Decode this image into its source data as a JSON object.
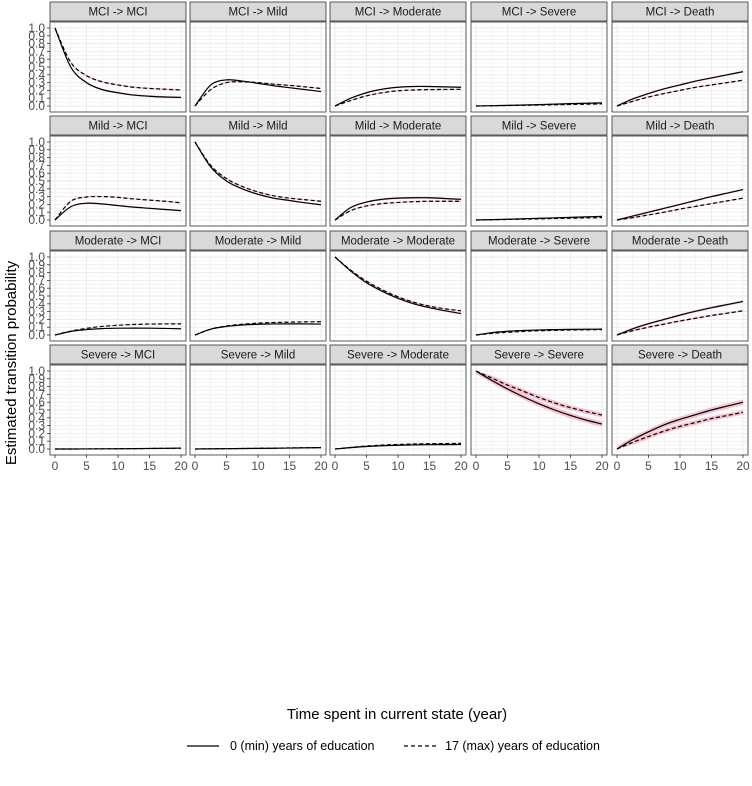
{
  "chart_data": {
    "type": "line",
    "layout": "facet grid, 4 rows (from state) x 5 columns (to state), shared axes",
    "xlabel": "Time spent in current state (year)",
    "ylabel": "Estimated transition probability",
    "xlim": [
      0,
      20
    ],
    "ylim": [
      0,
      1
    ],
    "x_ticks": [
      "0",
      "5",
      "10",
      "15",
      "20"
    ],
    "y_ticks": [
      "0.0",
      "0.1",
      "0.2",
      "0.3",
      "0.4",
      "0.5",
      "0.6",
      "0.7",
      "0.8",
      "0.9",
      "1.0"
    ],
    "grid": true,
    "legend_position": "bottom",
    "legend": [
      {
        "label": "0 (min) years of education",
        "linestyle": "solid"
      },
      {
        "label": "17 (max) years of education",
        "linestyle": "dashed"
      }
    ],
    "colors": {
      "line": "#000000",
      "ci_band": "#f4b8c4",
      "strip_bg": "#d9d9d9",
      "panel_border": "#333333",
      "grid": "#ebebeb"
    },
    "x": [
      0,
      2.5,
      5,
      7.5,
      10,
      12.5,
      15,
      17.5,
      20
    ],
    "panels": [
      {
        "title": "MCI -> MCI",
        "series": [
          {
            "name": "0 (min) years of education",
            "values": [
              1.0,
              0.5,
              0.3,
              0.21,
              0.17,
              0.14,
              0.125,
              0.115,
              0.11
            ],
            "band": 0.012
          },
          {
            "name": "17 (max) years of education",
            "values": [
              1.0,
              0.56,
              0.39,
              0.31,
              0.27,
              0.24,
              0.225,
              0.215,
              0.205
            ],
            "band": 0.01
          }
        ]
      },
      {
        "title": "MCI -> Mild",
        "series": [
          {
            "name": "0 (min) years of education",
            "values": [
              0.0,
              0.27,
              0.335,
              0.32,
              0.29,
              0.26,
              0.235,
              0.21,
              0.185
            ],
            "band": 0.008
          },
          {
            "name": "17 (max) years of education",
            "values": [
              0.0,
              0.21,
              0.3,
              0.31,
              0.3,
              0.28,
              0.265,
              0.245,
              0.225
            ],
            "band": 0.008
          }
        ]
      },
      {
        "title": "MCI -> Moderate",
        "series": [
          {
            "name": "0 (min) years of education",
            "values": [
              0.0,
              0.1,
              0.17,
              0.215,
              0.24,
              0.25,
              0.25,
              0.245,
              0.24
            ],
            "band": 0.008
          },
          {
            "name": "17 (max) years of education",
            "values": [
              0.0,
              0.07,
              0.13,
              0.17,
              0.195,
              0.205,
              0.21,
              0.212,
              0.214
            ],
            "band": 0.008
          }
        ]
      },
      {
        "title": "MCI -> Severe",
        "series": [
          {
            "name": "0 (min) years of education",
            "values": [
              0.0,
              0.004,
              0.008,
              0.013,
              0.018,
              0.024,
              0.03,
              0.035,
              0.04
            ],
            "band": 0.004
          },
          {
            "name": "17 (max) years of education",
            "values": [
              0.0,
              0.003,
              0.006,
              0.009,
              0.012,
              0.016,
              0.02,
              0.023,
              0.027
            ],
            "band": 0.004
          }
        ]
      },
      {
        "title": "MCI -> Death",
        "series": [
          {
            "name": "0 (min) years of education",
            "values": [
              0.0,
              0.09,
              0.16,
              0.22,
              0.27,
              0.32,
              0.36,
              0.4,
              0.44
            ],
            "band": 0.012
          },
          {
            "name": "17 (max) years of education",
            "values": [
              0.0,
              0.06,
              0.115,
              0.16,
              0.2,
              0.24,
              0.27,
              0.3,
              0.33
            ],
            "band": 0.01
          }
        ]
      },
      {
        "title": "Mild -> MCI",
        "series": [
          {
            "name": "0 (min) years of education",
            "values": [
              0.0,
              0.17,
              0.215,
              0.205,
              0.185,
              0.165,
              0.15,
              0.135,
              0.12
            ],
            "band": 0.01
          },
          {
            "name": "17 (max) years of education",
            "values": [
              0.0,
              0.24,
              0.295,
              0.3,
              0.29,
              0.27,
              0.255,
              0.24,
              0.22
            ],
            "band": 0.008
          }
        ]
      },
      {
        "title": "Mild -> Mild",
        "series": [
          {
            "name": "0 (min) years of education",
            "values": [
              1.0,
              0.68,
              0.5,
              0.4,
              0.33,
              0.28,
              0.25,
              0.22,
              0.195
            ],
            "band": 0.01
          },
          {
            "name": "17 (max) years of education",
            "values": [
              1.0,
              0.7,
              0.53,
              0.43,
              0.36,
              0.31,
              0.28,
              0.26,
              0.24
            ],
            "band": 0.008
          }
        ]
      },
      {
        "title": "Mild -> Moderate",
        "series": [
          {
            "name": "0 (min) years of education",
            "values": [
              0.0,
              0.16,
              0.23,
              0.265,
              0.28,
              0.285,
              0.285,
              0.275,
              0.265
            ],
            "band": 0.012
          },
          {
            "name": "17 (max) years of education",
            "values": [
              0.0,
              0.12,
              0.18,
              0.21,
              0.225,
              0.235,
              0.24,
              0.24,
              0.24
            ],
            "band": 0.008
          }
        ]
      },
      {
        "title": "Mild -> Severe",
        "series": [
          {
            "name": "0 (min) years of education",
            "values": [
              0.0,
              0.005,
              0.01,
              0.016,
              0.022,
              0.028,
              0.034,
              0.04,
              0.046
            ],
            "band": 0.004
          },
          {
            "name": "17 (max) years of education",
            "values": [
              0.0,
              0.003,
              0.007,
              0.011,
              0.015,
              0.019,
              0.023,
              0.027,
              0.03
            ],
            "band": 0.004
          }
        ]
      },
      {
        "title": "Mild -> Death",
        "series": [
          {
            "name": "0 (min) years of education",
            "values": [
              0.0,
              0.05,
              0.1,
              0.15,
              0.2,
              0.25,
              0.3,
              0.345,
              0.39
            ],
            "band": 0.012
          },
          {
            "name": "17 (max) years of education",
            "values": [
              0.0,
              0.03,
              0.065,
              0.1,
              0.14,
              0.175,
              0.21,
              0.245,
              0.28
            ],
            "band": 0.008
          }
        ]
      },
      {
        "title": "Moderate -> MCI",
        "series": [
          {
            "name": "0 (min) years of education",
            "values": [
              0.0,
              0.045,
              0.07,
              0.082,
              0.087,
              0.088,
              0.087,
              0.084,
              0.08
            ],
            "band": 0.006
          },
          {
            "name": "17 (max) years of education",
            "values": [
              0.0,
              0.05,
              0.085,
              0.11,
              0.125,
              0.135,
              0.14,
              0.142,
              0.143
            ],
            "band": 0.006
          }
        ]
      },
      {
        "title": "Moderate -> Mild",
        "series": [
          {
            "name": "0 (min) years of education",
            "values": [
              0.0,
              0.075,
              0.11,
              0.128,
              0.138,
              0.142,
              0.143,
              0.142,
              0.14
            ],
            "band": 0.006
          },
          {
            "name": "17 (max) years of education",
            "values": [
              0.0,
              0.075,
              0.115,
              0.138,
              0.152,
              0.16,
              0.165,
              0.168,
              0.17
            ],
            "band": 0.006
          }
        ]
      },
      {
        "title": "Moderate -> Moderate",
        "series": [
          {
            "name": "0 (min) years of education",
            "values": [
              1.0,
              0.82,
              0.67,
              0.56,
              0.47,
              0.4,
              0.35,
              0.31,
              0.275
            ],
            "band": 0.01
          },
          {
            "name": "17 (max) years of education",
            "values": [
              1.0,
              0.83,
              0.69,
              0.58,
              0.49,
              0.42,
              0.37,
              0.335,
              0.31
            ],
            "band": 0.01
          }
        ]
      },
      {
        "title": "Moderate -> Severe",
        "series": [
          {
            "name": "0 (min) years of education",
            "values": [
              0.0,
              0.03,
              0.048,
              0.058,
              0.065,
              0.069,
              0.072,
              0.074,
              0.075
            ],
            "band": 0.006
          },
          {
            "name": "17 (max) years of education",
            "values": [
              0.0,
              0.02,
              0.035,
              0.046,
              0.054,
              0.06,
              0.064,
              0.067,
              0.069
            ],
            "band": 0.005
          }
        ]
      },
      {
        "title": "Moderate -> Death",
        "series": [
          {
            "name": "0 (min) years of education",
            "values": [
              0.0,
              0.08,
              0.145,
              0.2,
              0.255,
              0.305,
              0.35,
              0.39,
              0.43
            ],
            "band": 0.015
          },
          {
            "name": "17 (max) years of education",
            "values": [
              0.0,
              0.055,
              0.1,
              0.14,
              0.18,
              0.215,
              0.25,
              0.28,
              0.31
            ],
            "band": 0.012
          }
        ]
      },
      {
        "title": "Severe -> MCI",
        "series": [
          {
            "name": "0 (min) years of education",
            "values": [
              0.0,
              0.0,
              0.001,
              0.002,
              0.003,
              0.005,
              0.007,
              0.009,
              0.012
            ],
            "band": 0.004
          },
          {
            "name": "17 (max) years of education",
            "values": [
              0.0,
              0.0,
              0.001,
              0.002,
              0.003,
              0.004,
              0.006,
              0.008,
              0.01
            ],
            "band": 0.004
          }
        ]
      },
      {
        "title": "Severe -> Mild",
        "series": [
          {
            "name": "0 (min) years of education",
            "values": [
              0.0,
              0.002,
              0.004,
              0.006,
              0.008,
              0.01,
              0.012,
              0.015,
              0.018
            ],
            "band": 0.004
          },
          {
            "name": "17 (max) years of education",
            "values": [
              0.0,
              0.002,
              0.004,
              0.006,
              0.009,
              0.011,
              0.014,
              0.016,
              0.019
            ],
            "band": 0.004
          }
        ]
      },
      {
        "title": "Severe -> Moderate",
        "series": [
          {
            "name": "0 (min) years of education",
            "values": [
              0.0,
              0.018,
              0.032,
              0.042,
              0.048,
              0.052,
              0.055,
              0.056,
              0.057
            ],
            "band": 0.008
          },
          {
            "name": "17 (max) years of education",
            "values": [
              0.0,
              0.02,
              0.038,
              0.05,
              0.058,
              0.064,
              0.068,
              0.07,
              0.072
            ],
            "band": 0.008
          }
        ]
      },
      {
        "title": "Severe -> Severe",
        "series": [
          {
            "name": "0 (min) years of education",
            "values": [
              1.0,
              0.88,
              0.77,
              0.67,
              0.58,
              0.5,
              0.43,
              0.37,
              0.32
            ],
            "band": 0.035
          },
          {
            "name": "17 (max) years of education",
            "values": [
              1.0,
              0.91,
              0.82,
              0.74,
              0.66,
              0.59,
              0.53,
              0.48,
              0.435
            ],
            "band": 0.03
          }
        ]
      },
      {
        "title": "Severe -> Death",
        "series": [
          {
            "name": "0 (min) years of education",
            "values": [
              0.0,
              0.12,
              0.22,
              0.31,
              0.38,
              0.44,
              0.5,
              0.55,
              0.6
            ],
            "band": 0.035
          },
          {
            "name": "17 (max) years of education",
            "values": [
              0.0,
              0.085,
              0.16,
              0.23,
              0.29,
              0.34,
              0.39,
              0.43,
              0.47
            ],
            "band": 0.03
          }
        ]
      }
    ]
  }
}
